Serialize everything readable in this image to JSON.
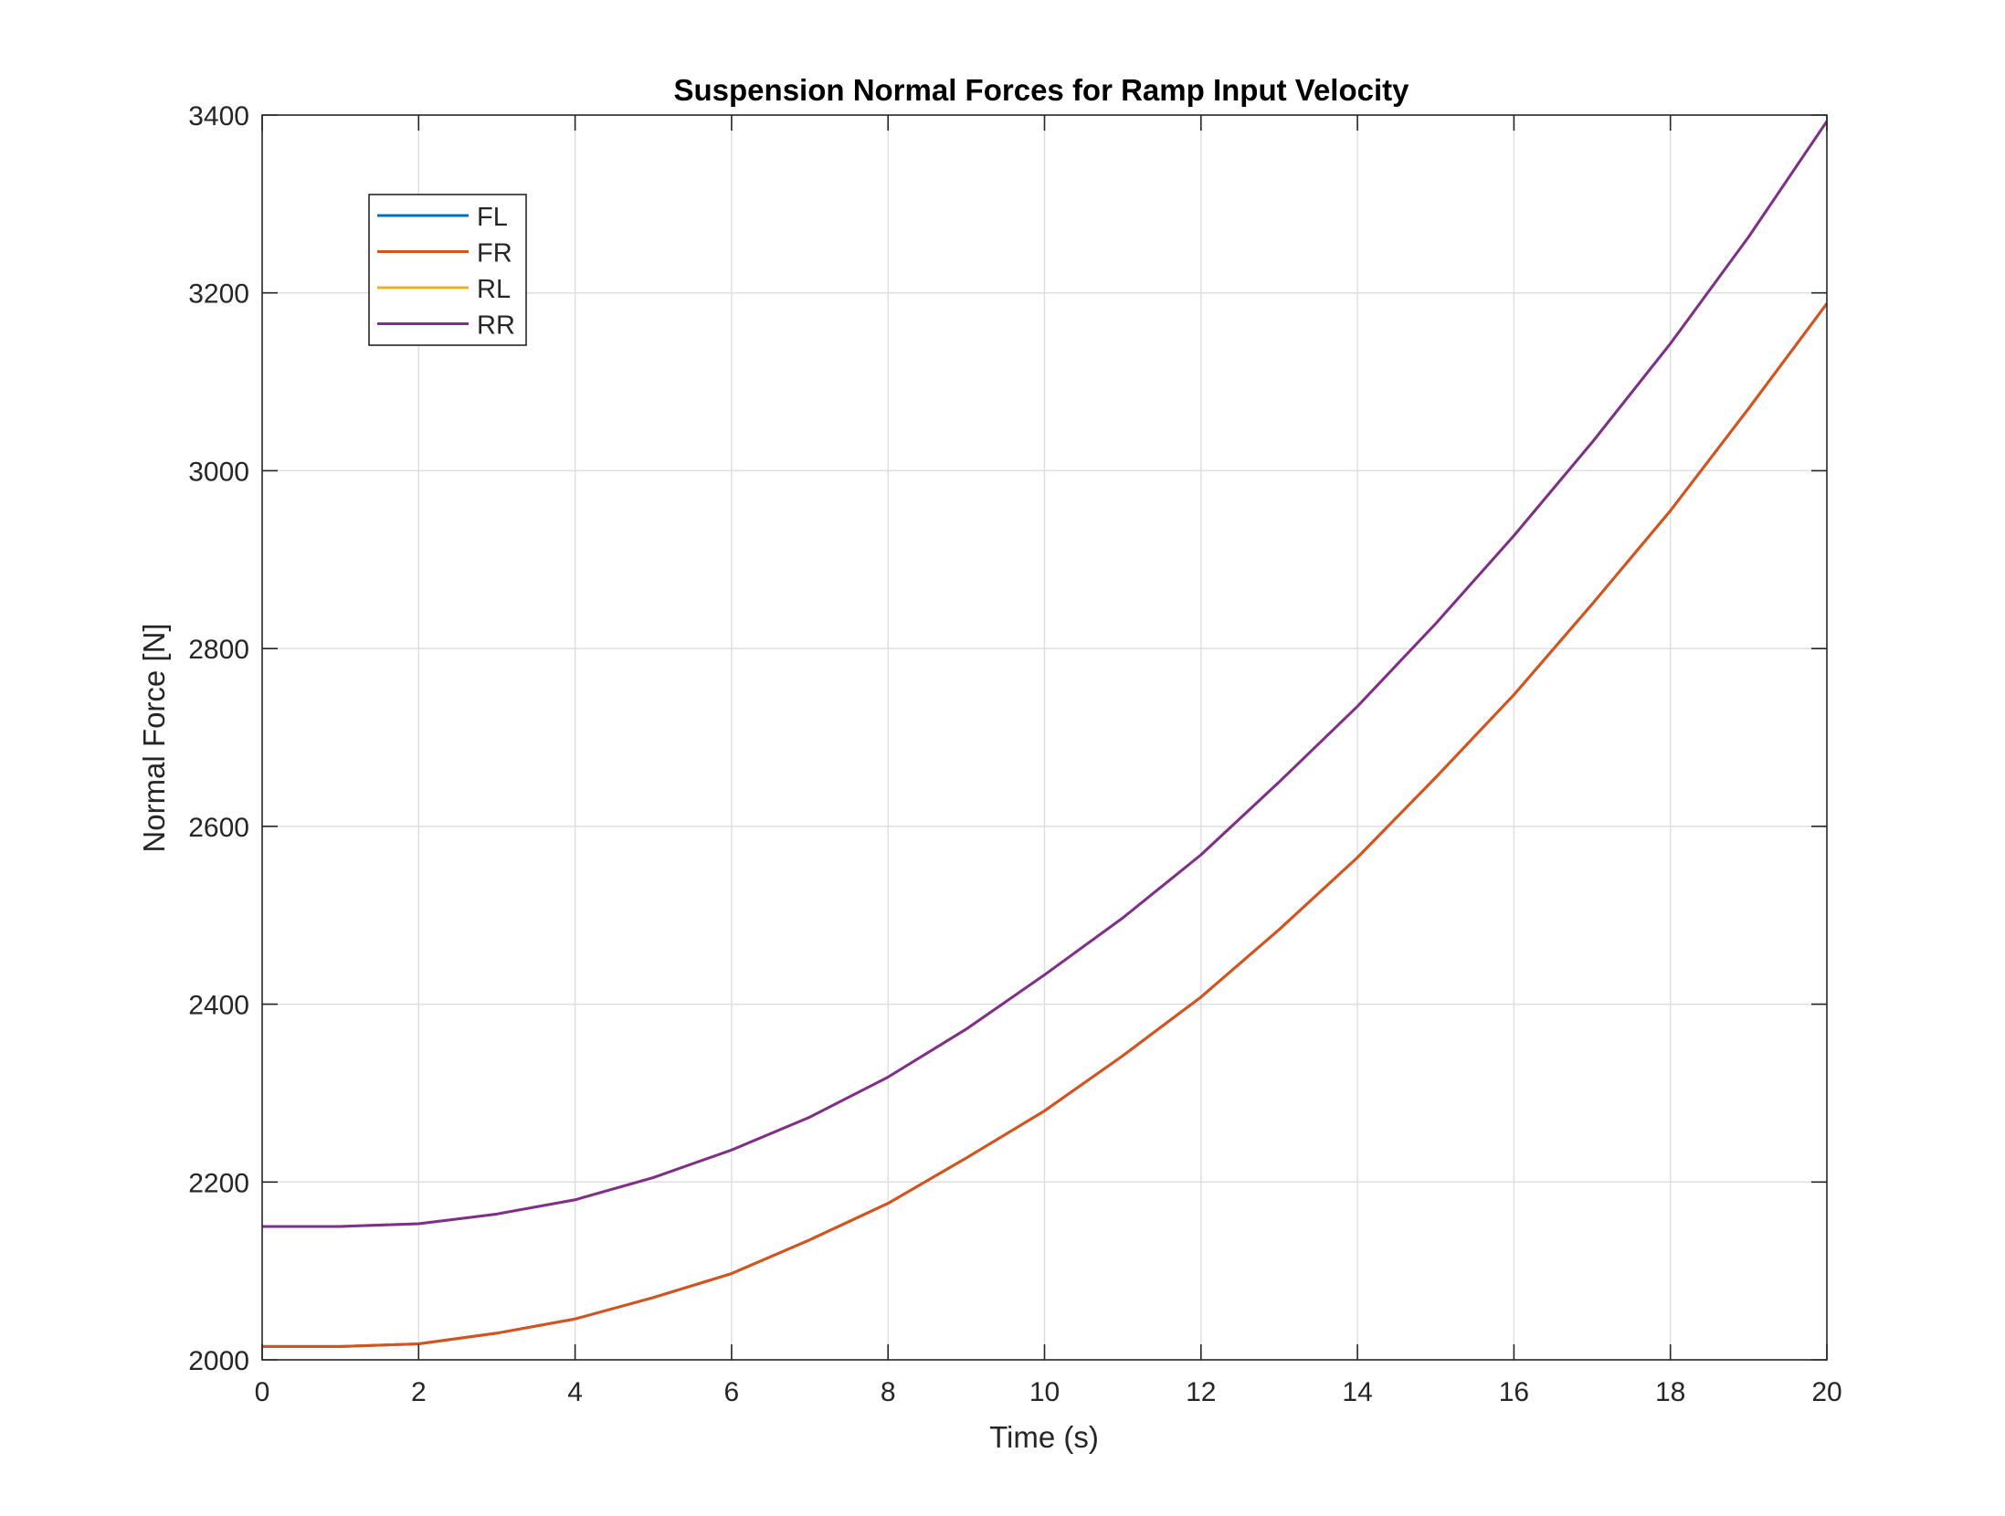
{
  "chart_data": {
    "type": "line",
    "title": "Suspension Normal Forces for Ramp Input Velocity",
    "xlabel": "Time (s)",
    "ylabel": "Normal Force [N]",
    "xlim": [
      0,
      20
    ],
    "ylim": [
      2000,
      3400
    ],
    "xticks": [
      0,
      2,
      4,
      6,
      8,
      10,
      12,
      14,
      16,
      18,
      20
    ],
    "yticks": [
      2000,
      2200,
      2400,
      2600,
      2800,
      3000,
      3200,
      3400
    ],
    "grid": true,
    "legend_position": "top-left",
    "x": [
      0,
      1,
      2,
      3,
      4,
      5,
      6,
      7,
      8,
      9,
      10,
      11,
      12,
      13,
      14,
      15,
      16,
      17,
      18,
      19,
      20
    ],
    "series": [
      {
        "name": "FL",
        "color": "#0072BD",
        "values": [
          2015,
          2015,
          2018,
          2030,
          2046,
          2070,
          2097,
          2135,
          2176,
          2227,
          2280,
          2342,
          2408,
          2484,
          2565,
          2655,
          2748,
          2850,
          2955,
          3070,
          3188
        ]
      },
      {
        "name": "FR",
        "color": "#D95319",
        "values": [
          2015,
          2015,
          2018,
          2030,
          2046,
          2070,
          2097,
          2135,
          2176,
          2227,
          2280,
          2342,
          2408,
          2484,
          2565,
          2655,
          2748,
          2850,
          2955,
          3070,
          3188
        ]
      },
      {
        "name": "RL",
        "color": "#EDB120",
        "values": [
          2150,
          2150,
          2153,
          2164,
          2180,
          2205,
          2236,
          2273,
          2318,
          2372,
          2433,
          2497,
          2568,
          2650,
          2735,
          2828,
          2927,
          3032,
          3143,
          3263,
          3393
        ]
      },
      {
        "name": "RR",
        "color": "#7E2F8E",
        "values": [
          2150,
          2150,
          2153,
          2164,
          2180,
          2205,
          2236,
          2273,
          2318,
          2372,
          2433,
          2497,
          2568,
          2650,
          2735,
          2828,
          2927,
          3032,
          3143,
          3263,
          3393
        ]
      }
    ]
  }
}
